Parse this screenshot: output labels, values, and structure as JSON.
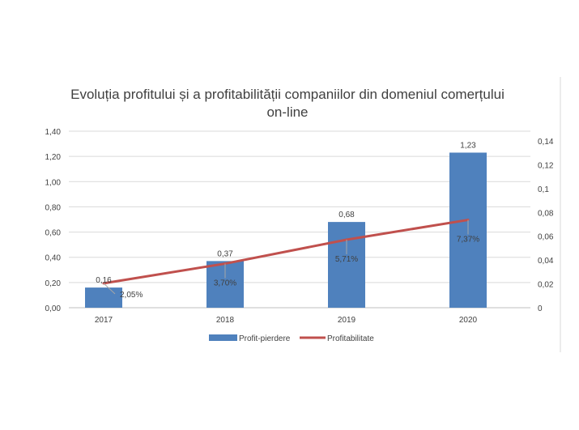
{
  "chart_data": {
    "type": "bar+line",
    "title_line1": "Evoluția profitului și a profitabilității companiilor din domeniul comerțului",
    "title_line2": "on-line",
    "categories": [
      "2017",
      "2018",
      "2019",
      "2020"
    ],
    "series": [
      {
        "name": "Profit-pierdere",
        "type": "bar",
        "axis": "left",
        "values": [
          0.16,
          0.37,
          0.68,
          1.23
        ],
        "labels": [
          "0,16",
          "0,37",
          "0,68",
          "1,23"
        ],
        "color": "#4f81bd"
      },
      {
        "name": "Profitabilitate",
        "type": "line",
        "axis": "right",
        "values": [
          0.0205,
          0.037,
          0.0571,
          0.0737
        ],
        "labels": [
          "2,05%",
          "3,70%",
          "5,71%",
          "7,37%"
        ],
        "color": "#c0504d"
      }
    ],
    "left_axis": {
      "ylim": [
        0,
        1.4
      ],
      "ticks": [
        "0,00",
        "0,20",
        "0,40",
        "0,60",
        "0,80",
        "1,00",
        "1,20",
        "1,40"
      ]
    },
    "right_axis": {
      "ylim": [
        0,
        0.14
      ],
      "ticks": [
        "0",
        "0,02",
        "0,04",
        "0,06",
        "0,08",
        "0,1",
        "0,12",
        "0,14"
      ]
    },
    "grid": true,
    "legend_position": "bottom"
  }
}
